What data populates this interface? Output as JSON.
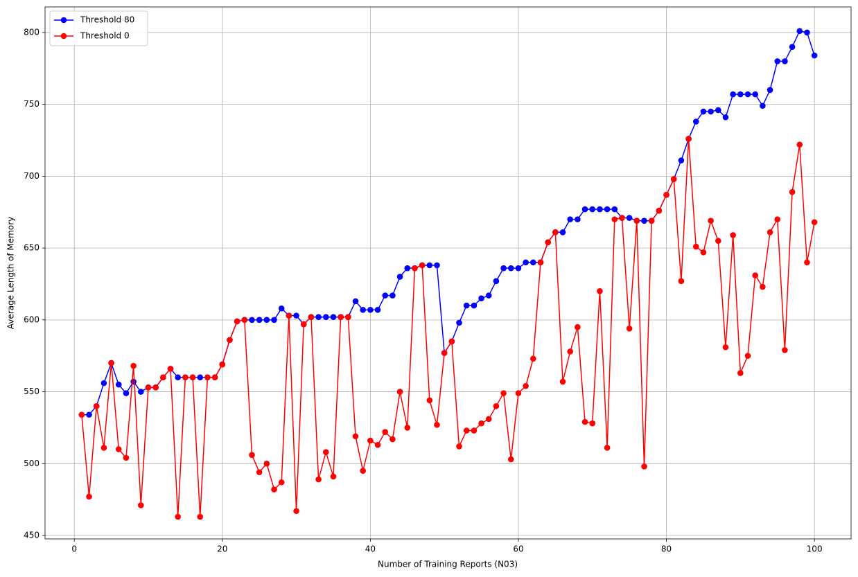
{
  "chart_data": {
    "type": "line",
    "x_label": "Number of Training Reports (N03)",
    "y_label": "Average Length of Memory",
    "x": [
      1,
      2,
      3,
      4,
      5,
      6,
      7,
      8,
      9,
      10,
      11,
      12,
      13,
      14,
      15,
      16,
      17,
      18,
      19,
      20,
      21,
      22,
      23,
      24,
      25,
      26,
      27,
      28,
      29,
      30,
      31,
      32,
      33,
      34,
      35,
      36,
      37,
      38,
      39,
      40,
      41,
      42,
      43,
      44,
      45,
      46,
      47,
      48,
      49,
      50,
      51,
      52,
      53,
      54,
      55,
      56,
      57,
      58,
      59,
      60,
      61,
      62,
      63,
      64,
      65,
      66,
      67,
      68,
      69,
      70,
      71,
      72,
      73,
      74,
      75,
      76,
      77,
      78,
      79,
      80,
      81,
      82,
      83,
      84,
      85,
      86,
      87,
      88,
      89,
      90,
      91,
      92,
      93,
      94,
      95,
      96,
      97,
      98,
      99,
      100
    ],
    "series": [
      {
        "name": "Threshold 80",
        "color": "#0000ff",
        "values": [
          534,
          534,
          540,
          556,
          570,
          555,
          549,
          557,
          550,
          553,
          553,
          560,
          566,
          560,
          560,
          560,
          560,
          560,
          560,
          569,
          586,
          599,
          600,
          600,
          600,
          600,
          600,
          608,
          603,
          603,
          597,
          602,
          602,
          602,
          602,
          602,
          602,
          613,
          607,
          607,
          607,
          617,
          617,
          630,
          636,
          636,
          638,
          638,
          638,
          577,
          585,
          598,
          610,
          610,
          615,
          617,
          627,
          636,
          636,
          636,
          640,
          640,
          640,
          654,
          661,
          661,
          670,
          670,
          677,
          677,
          677,
          677,
          677,
          671,
          671,
          669,
          669,
          669,
          676,
          687,
          698,
          711,
          726,
          738,
          745,
          745,
          746,
          741,
          757,
          757,
          757,
          757,
          749,
          760,
          780,
          780,
          790,
          801,
          800,
          784
        ]
      },
      {
        "name": "Threshold 0",
        "color": "#ff0000",
        "values": [
          534,
          477,
          540,
          511,
          570,
          510,
          504,
          568,
          471,
          553,
          553,
          560,
          566,
          463,
          560,
          560,
          463,
          560,
          560,
          569,
          586,
          599,
          600,
          506,
          494,
          500,
          482,
          487,
          603,
          467,
          597,
          602,
          489,
          508,
          491,
          602,
          602,
          519,
          495,
          516,
          513,
          522,
          517,
          550,
          525,
          636,
          638,
          544,
          527,
          577,
          585,
          512,
          523,
          523,
          528,
          531,
          540,
          549,
          503,
          549,
          554,
          573,
          640,
          654,
          661,
          557,
          578,
          595,
          529,
          528,
          620,
          511,
          670,
          671,
          594,
          669,
          498,
          669,
          676,
          687,
          698,
          627,
          726,
          651,
          647,
          669,
          655,
          581,
          659,
          563,
          575,
          631,
          623,
          661,
          670,
          579,
          689,
          722,
          640,
          668
        ]
      }
    ],
    "xlim": [
      -3.95,
      104.95
    ],
    "xticks": [
      0,
      20,
      40,
      60,
      80,
      100
    ],
    "ylim": [
      447.6,
      817.8
    ],
    "yticks": [
      450,
      500,
      550,
      600,
      650,
      700,
      750,
      800
    ],
    "grid": true,
    "legend": "upper left"
  }
}
